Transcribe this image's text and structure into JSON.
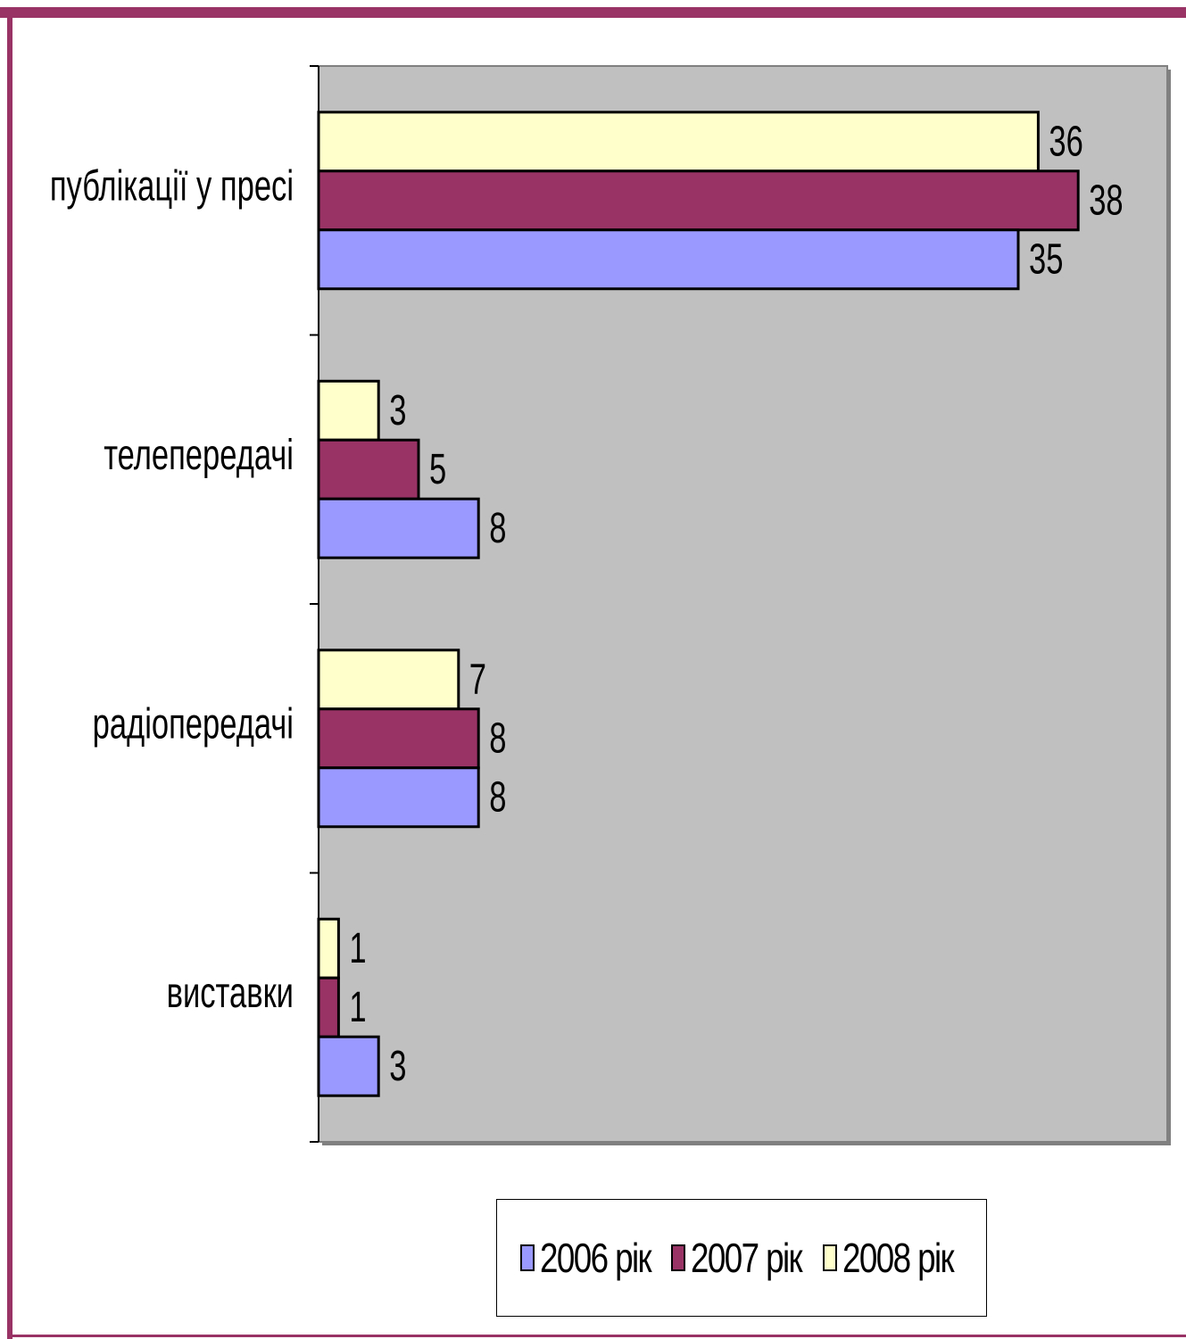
{
  "chart_data": {
    "type": "bar",
    "orientation": "horizontal",
    "categories": [
      "публікації у пресі",
      "телепередачі",
      "радіопередачі",
      "виставки"
    ],
    "series": [
      {
        "name": "2006 рік",
        "color": "#9999ff",
        "values": [
          35,
          8,
          8,
          3
        ]
      },
      {
        "name": "2007 рік",
        "color": "#993366",
        "values": [
          38,
          5,
          8,
          1
        ]
      },
      {
        "name": "2008 рік",
        "color": "#ffffcc",
        "values": [
          36,
          3,
          7,
          1
        ]
      }
    ],
    "xlim": [
      0,
      40
    ],
    "plot_background": "#c0c0c0",
    "grid": false,
    "legend_position": "bottom"
  },
  "legend": {
    "items": [
      {
        "label": "2006 рік",
        "color": "#9999ff"
      },
      {
        "label": "2007 рік",
        "color": "#993366"
      },
      {
        "label": "2008 рік",
        "color": "#ffffcc"
      }
    ]
  },
  "frame_color": "#993366"
}
